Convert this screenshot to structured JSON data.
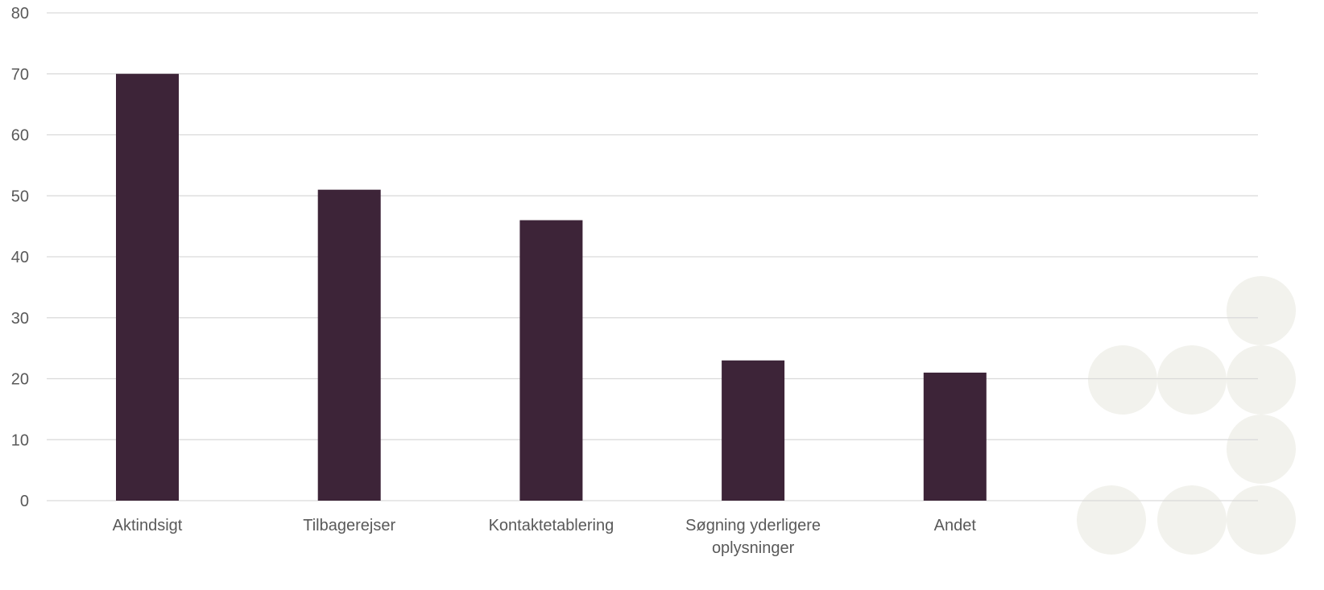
{
  "chart_data": {
    "type": "bar",
    "title": "",
    "xlabel": "",
    "ylabel": "",
    "categories": [
      "Aktindsigt",
      "Tilbagerejser",
      "Kontaktetablering",
      "Søgning yderligere oplysninger",
      "Andet"
    ],
    "category_lines": [
      [
        "Aktindsigt"
      ],
      [
        "Tilbagerejser"
      ],
      [
        "Kontaktetablering"
      ],
      [
        "Søgning yderligere",
        "oplysninger"
      ],
      [
        "Andet"
      ]
    ],
    "values": [
      70,
      51,
      46,
      23,
      21
    ],
    "ylim": [
      0,
      80
    ],
    "yticks": [
      "0",
      "10",
      "20",
      "30",
      "40",
      "50",
      "60",
      "70",
      "80"
    ],
    "grid": true,
    "legend": "none",
    "colors": {
      "bar": "#3d2438",
      "grid": "#d9d9d9",
      "tick_text": "#595959",
      "decoration": "#f2f2ed"
    }
  }
}
